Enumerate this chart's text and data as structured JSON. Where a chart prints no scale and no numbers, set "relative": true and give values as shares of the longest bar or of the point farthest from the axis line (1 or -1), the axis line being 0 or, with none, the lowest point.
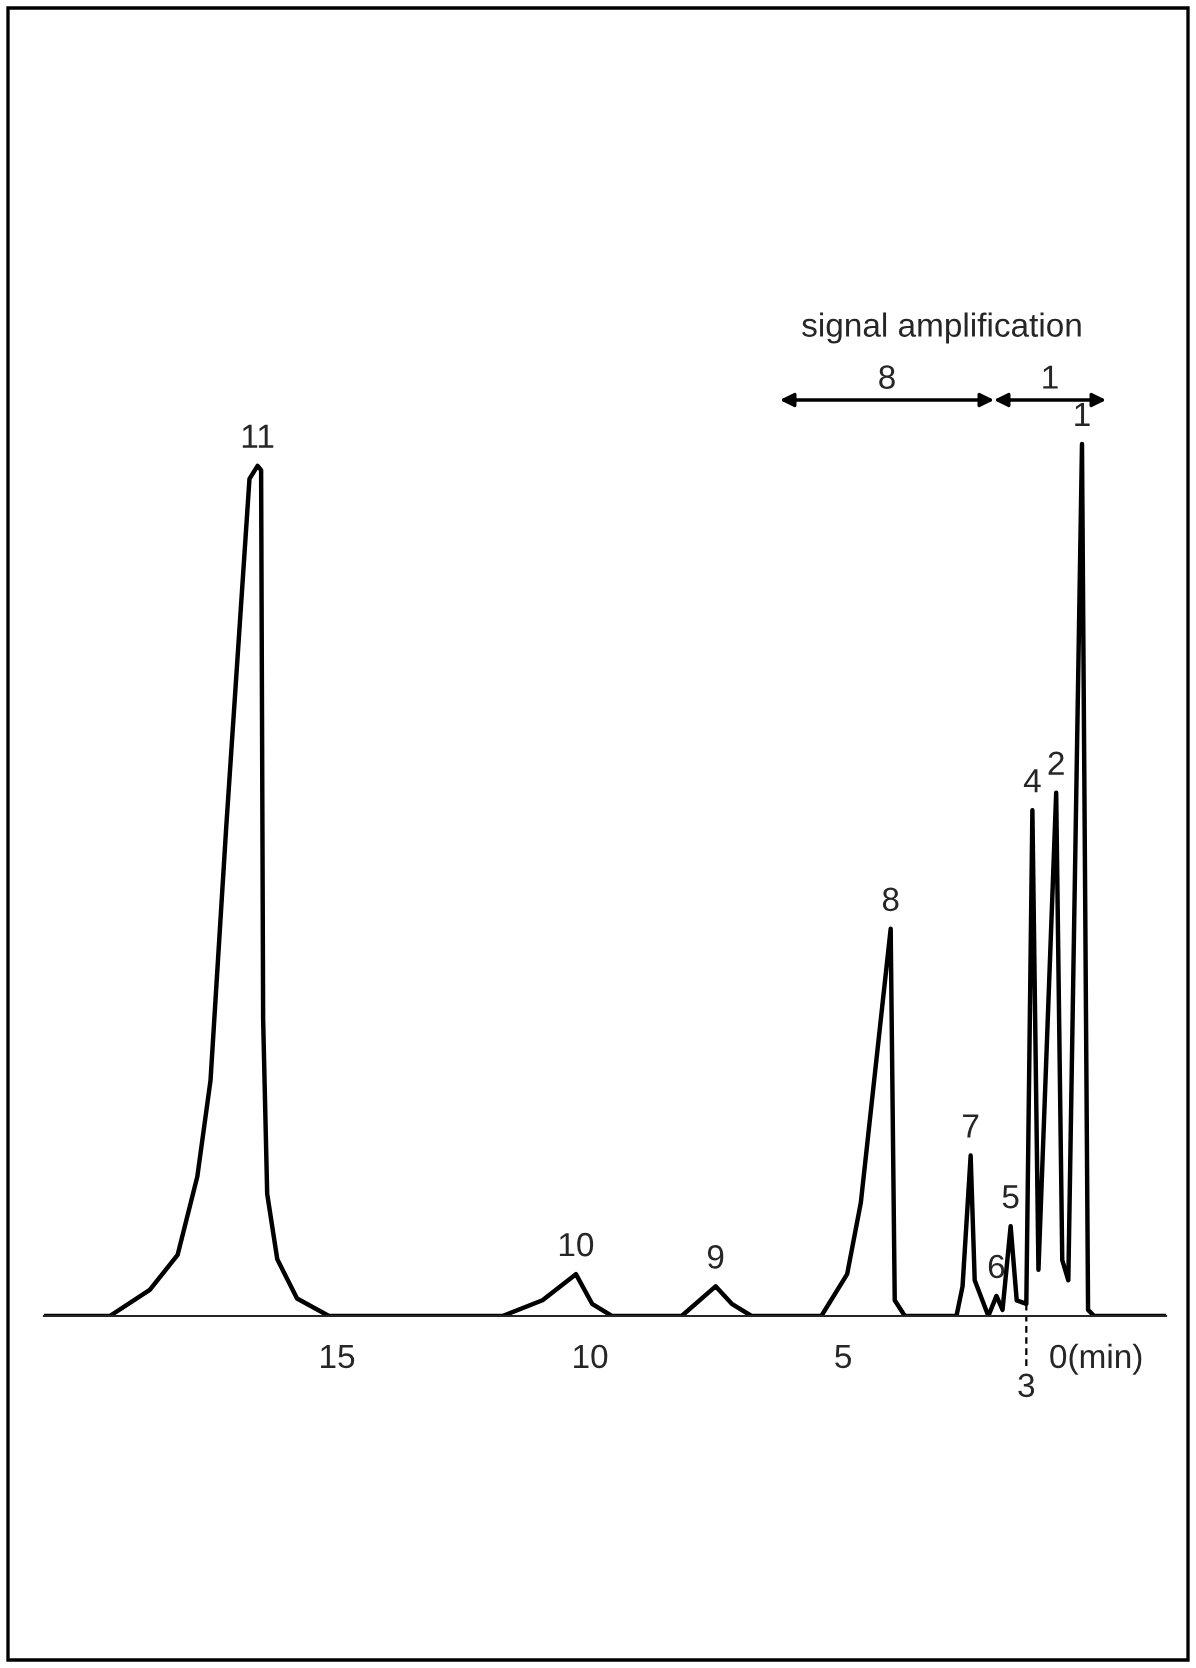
{
  "chart_data": {
    "type": "line",
    "relative": true,
    "x": [
      20.79,
      19.49,
      18.7,
      18.15,
      17.76,
      17.5,
      17.19,
      16.73,
      16.57,
      16.5,
      16.46,
      16.38,
      16.18,
      15.79,
      15.16,
      11.73,
      10.94,
      10.28,
      9.96,
      9.57,
      8.19,
      7.52,
      7.2,
      6.81,
      5.43,
      4.92,
      4.65,
      4.06,
      3.98,
      3.78,
      2.76,
      2.64,
      2.48,
      2.4,
      2.13,
      1.97,
      1.85,
      1.69,
      1.57,
      1.38,
      1.26,
      1.14,
      0.79,
      0.67,
      0.55,
      0.28,
      0.16,
      0.04,
      -1.38
    ],
    "series": [
      {
        "color": "#000000",
        "values": [
          0,
          0,
          0.03,
          0.07,
          0.16,
          0.27,
          0.56,
          0.96,
          0.975,
          0.97,
          0.34,
          0.14,
          0.065,
          0.02,
          0,
          0,
          0.018,
          0.048,
          0.014,
          0,
          0,
          0.034,
          0.014,
          0,
          0,
          0.048,
          0.13,
          0.444,
          0.018,
          0,
          0,
          0.034,
          0.184,
          0.041,
          0,
          0.023,
          0.007,
          0.103,
          0.018,
          0.014,
          0.58,
          0.053,
          0.6,
          0.064,
          0.041,
          1.0,
          0.007,
          0,
          0
        ]
      }
    ],
    "xlim": [
      20.79,
      -1.38
    ],
    "xticks": [
      15,
      10,
      5,
      {
        "value": 0,
        "label": "0(min)"
      }
    ],
    "grid": false,
    "legend": false,
    "marker": "none",
    "line_style": "solid",
    "annotations": [
      "signal amplification",
      "8",
      "1",
      {
        "text": "11",
        "x": 16.57,
        "y": 0.975
      },
      {
        "text": "10",
        "x": 10.28,
        "y": 0.048
      },
      {
        "text": "9",
        "x": 7.52,
        "y": 0.034
      },
      {
        "text": "8",
        "x": 4.06,
        "y": 0.444
      },
      {
        "text": "7",
        "x": 2.48,
        "y": 0.184
      },
      {
        "text": "6",
        "x": 1.97,
        "y": 0.023
      },
      {
        "text": "5",
        "x": 1.69,
        "y": 0.103
      },
      {
        "text": "4",
        "x": 1.26,
        "y": 0.58
      },
      {
        "text": "3",
        "x": 1.38,
        "y": 0.014
      },
      {
        "text": "2",
        "x": 0.79,
        "y": 0.6
      },
      {
        "text": "1",
        "x": 0.28,
        "y": 1.0
      }
    ]
  }
}
